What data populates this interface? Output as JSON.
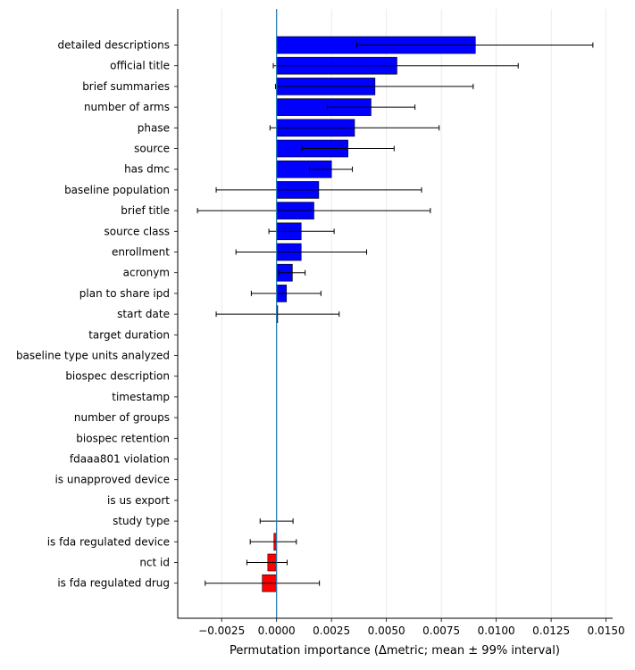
{
  "chart_data": {
    "type": "bar",
    "orientation": "horizontal",
    "title": "",
    "xlabel": "Permutation importance (Δmetric; mean ± 99% interval)",
    "ylabel": "",
    "xlim": [
      -0.0045,
      0.0153
    ],
    "xticks": [
      -0.0025,
      0.0,
      0.0025,
      0.005,
      0.0075,
      0.01,
      0.0125,
      0.015
    ],
    "xtick_labels": [
      "−0.0025",
      "0.0000",
      "0.0025",
      "0.0050",
      "0.0075",
      "0.0100",
      "0.0125",
      "0.0150"
    ],
    "grid": "vertical-light",
    "zero_line_color": "#1f77b4",
    "positive_color": "#0000ff",
    "negative_color": "#ff0000",
    "bars": [
      {
        "label": "detailed descriptions",
        "mean": 0.00905,
        "lo": 0.00365,
        "hi": 0.0144
      },
      {
        "label": "official title",
        "mean": 0.00548,
        "lo": -0.00015,
        "hi": 0.011
      },
      {
        "label": "brief summaries",
        "mean": 0.00448,
        "lo": -5e-05,
        "hi": 0.00895
      },
      {
        "label": "number of arms",
        "mean": 0.0043,
        "lo": 0.0023,
        "hi": 0.0063
      },
      {
        "label": "phase",
        "mean": 0.00355,
        "lo": -0.0003,
        "hi": 0.0074
      },
      {
        "label": "source",
        "mean": 0.00325,
        "lo": 0.00115,
        "hi": 0.00535
      },
      {
        "label": "has dmc",
        "mean": 0.0025,
        "lo": 0.0015,
        "hi": 0.00345
      },
      {
        "label": "baseline population",
        "mean": 0.00192,
        "lo": -0.00275,
        "hi": 0.0066
      },
      {
        "label": "brief title",
        "mean": 0.0017,
        "lo": -0.0036,
        "hi": 0.007
      },
      {
        "label": "source class",
        "mean": 0.00112,
        "lo": -0.00035,
        "hi": 0.00262
      },
      {
        "label": "enrollment",
        "mean": 0.00112,
        "lo": -0.00185,
        "hi": 0.0041
      },
      {
        "label": "acronym",
        "mean": 0.00072,
        "lo": 0.0001,
        "hi": 0.0013
      },
      {
        "label": "plan to share ipd",
        "mean": 0.00045,
        "lo": -0.00115,
        "hi": 0.00202
      },
      {
        "label": "start date",
        "mean": 5e-05,
        "lo": -0.00275,
        "hi": 0.00285
      },
      {
        "label": "target duration",
        "mean": 0.0,
        "lo": 0.0,
        "hi": 0.0
      },
      {
        "label": "baseline type units analyzed",
        "mean": 0.0,
        "lo": 0.0,
        "hi": 0.0
      },
      {
        "label": "biospec description",
        "mean": 0.0,
        "lo": 0.0,
        "hi": 0.0
      },
      {
        "label": "timestamp",
        "mean": 0.0,
        "lo": 0.0,
        "hi": 0.0
      },
      {
        "label": "number of groups",
        "mean": 0.0,
        "lo": 0.0,
        "hi": 0.0
      },
      {
        "label": "biospec retention",
        "mean": 0.0,
        "lo": 0.0,
        "hi": 0.0
      },
      {
        "label": "fdaaa801 violation",
        "mean": 0.0,
        "lo": 0.0,
        "hi": 0.0
      },
      {
        "label": "is unapproved device",
        "mean": 0.0,
        "lo": 0.0,
        "hi": 0.0
      },
      {
        "label": "is us export",
        "mean": 0.0,
        "lo": 0.0,
        "hi": 0.0
      },
      {
        "label": "study type",
        "mean": 0.0,
        "lo": -0.00075,
        "hi": 0.00075
      },
      {
        "label": "is fda regulated device",
        "mean": -0.00012,
        "lo": -0.0012,
        "hi": 0.0009
      },
      {
        "label": "nct id",
        "mean": -0.0004,
        "lo": -0.00135,
        "hi": 0.00048
      },
      {
        "label": "is fda regulated drug",
        "mean": -0.00065,
        "lo": -0.00325,
        "hi": 0.00195
      }
    ]
  }
}
